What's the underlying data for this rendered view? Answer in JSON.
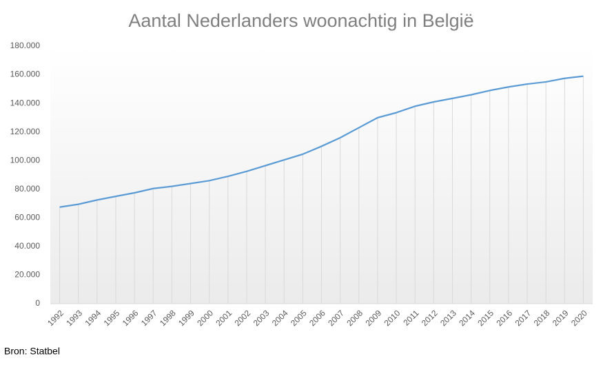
{
  "chart_data": {
    "type": "line",
    "title": "Aantal Nederlanders  woonachtig in België",
    "source": "Bron: Statbel",
    "categories": [
      "1992",
      "1993",
      "1994",
      "1995",
      "1996",
      "1997",
      "1998",
      "1999",
      "2000",
      "2001",
      "2002",
      "2003",
      "2004",
      "2005",
      "2006",
      "2007",
      "2008",
      "2009",
      "2010",
      "2011",
      "2012",
      "2013",
      "2014",
      "2015",
      "2016",
      "2017",
      "2018",
      "2019",
      "2020"
    ],
    "values": [
      67500,
      69500,
      72500,
      75000,
      77500,
      80500,
      82000,
      84000,
      86000,
      89000,
      92500,
      96500,
      100500,
      104500,
      110000,
      116000,
      123000,
      130000,
      133500,
      138000,
      141000,
      143500,
      146000,
      149000,
      151500,
      153500,
      155000,
      157500,
      159000
    ],
    "color": "#5b9bd5",
    "ylim": [
      0,
      180000
    ],
    "yticks": [
      0,
      {
        "value": 20000,
        "label": "20.000"
      },
      {
        "value": 40000,
        "label": "40.000"
      },
      {
        "value": 60000,
        "label": "60.000"
      },
      {
        "value": 80000,
        "label": "80.000"
      },
      {
        "value": 100000,
        "label": "100.000"
      },
      {
        "value": 120000,
        "label": "120.000"
      },
      {
        "value": 140000,
        "label": "140.000"
      },
      {
        "value": 160000,
        "label": "160.000"
      },
      {
        "value": 180000,
        "label": "180.000"
      }
    ],
    "drop_lines": true
  }
}
